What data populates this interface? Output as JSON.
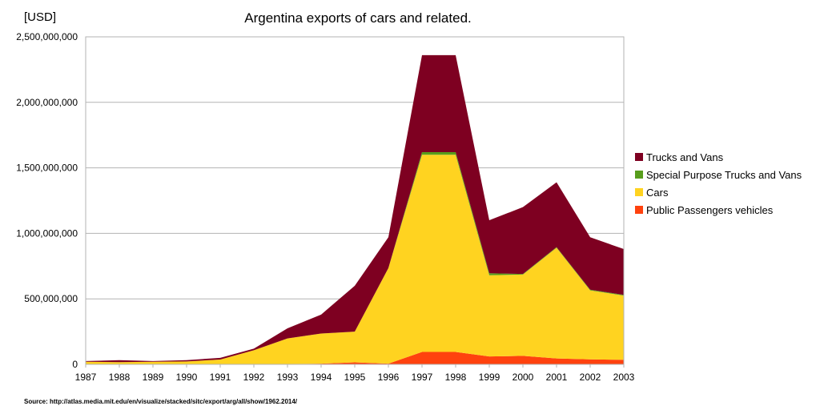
{
  "chart_data": {
    "type": "area",
    "stacked": true,
    "title": "Argentina exports of cars and related.",
    "unit_label": "[USD]",
    "source": "Source:  http://atlas.media.mit.edu/en/visualize/stacked/sitc/export/arg/all/show/1962.2014/",
    "x": [
      "1987",
      "1988",
      "1989",
      "1990",
      "1991",
      "1992",
      "1993",
      "1994",
      "1995",
      "1996",
      "1997",
      "1998",
      "1999",
      "2000",
      "2001",
      "2002",
      "2003"
    ],
    "ylim": [
      0,
      2500000000
    ],
    "yticks": [
      0,
      500000000,
      1000000000,
      1500000000,
      2000000000,
      2500000000
    ],
    "ytick_labels": [
      "0",
      "500,000,000",
      "1,000,000,000",
      "1,500,000,000",
      "2,000,000,000",
      "2,500,000,000"
    ],
    "grid": true,
    "legend_position": "right",
    "series": [
      {
        "name": "Public Passengers vehicles",
        "color": "#ff420e",
        "values": [
          2000000,
          2000000,
          2000000,
          2000000,
          2000000,
          3000000,
          3000000,
          5000000,
          15000000,
          5000000,
          95000000,
          95000000,
          60000000,
          65000000,
          45000000,
          38000000,
          35000000
        ]
      },
      {
        "name": "Cars",
        "color": "#ffd320",
        "values": [
          18000000,
          15000000,
          18000000,
          20000000,
          35000000,
          105000000,
          195000000,
          230000000,
          235000000,
          730000000,
          1505000000,
          1505000000,
          620000000,
          620000000,
          845000000,
          527000000,
          490000000
        ]
      },
      {
        "name": "Special Purpose Trucks and Vans",
        "color": "#579d1c",
        "values": [
          0,
          0,
          0,
          0,
          0,
          0,
          0,
          0,
          0,
          0,
          20000000,
          20000000,
          15000000,
          5000000,
          5000000,
          5000000,
          5000000
        ]
      },
      {
        "name": "Trucks and Vans",
        "color": "#7e0021",
        "values": [
          5000000,
          15000000,
          5000000,
          10000000,
          13000000,
          12000000,
          77000000,
          145000000,
          350000000,
          235000000,
          740000000,
          740000000,
          405000000,
          510000000,
          495000000,
          400000000,
          350000000
        ]
      }
    ],
    "legend_order": [
      "Trucks and Vans",
      "Special Purpose Trucks and Vans",
      "Cars",
      "Public Passengers vehicles"
    ]
  }
}
